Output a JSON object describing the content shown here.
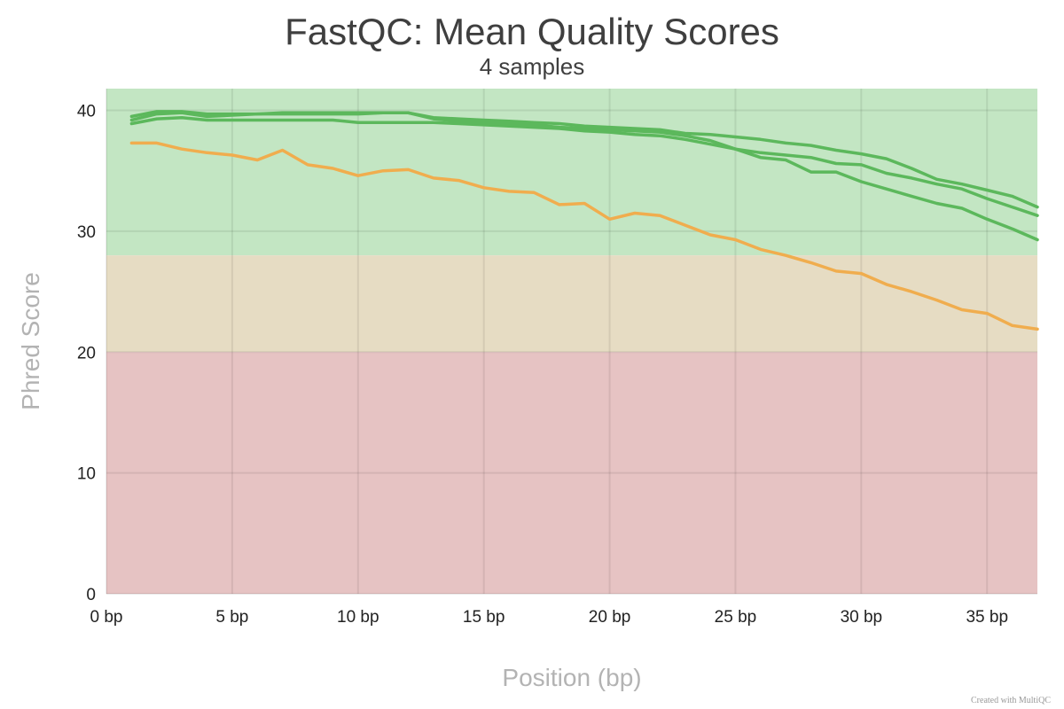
{
  "chart_data": {
    "type": "line",
    "title": "FastQC: Mean Quality Scores",
    "subtitle": "4 samples",
    "xlabel": "Position (bp)",
    "ylabel": "Phred Score",
    "xlim": [
      0,
      37
    ],
    "ylim": [
      0,
      41.8
    ],
    "x_ticks": [
      0,
      5,
      10,
      15,
      20,
      25,
      30,
      35
    ],
    "x_tick_labels": [
      "0 bp",
      "5 bp",
      "10 bp",
      "15 bp",
      "20 bp",
      "25 bp",
      "30 bp",
      "35 bp"
    ],
    "y_ticks": [
      0,
      10,
      20,
      30,
      40
    ],
    "y_tick_labels": [
      "0",
      "10",
      "20",
      "30",
      "40"
    ],
    "grid": true,
    "bands": [
      {
        "from": 28,
        "to": 41.8,
        "color": "#c3e6c3"
      },
      {
        "from": 20,
        "to": 28,
        "color": "#e6dcc3"
      },
      {
        "from": 0,
        "to": 20,
        "color": "#e6c3c3"
      }
    ],
    "x": [
      1,
      2,
      3,
      4,
      5,
      6,
      7,
      8,
      9,
      10,
      11,
      12,
      13,
      14,
      15,
      16,
      17,
      18,
      19,
      20,
      21,
      22,
      23,
      24,
      25,
      26,
      27,
      28,
      29,
      30,
      31,
      32,
      33,
      34,
      35,
      36,
      37
    ],
    "series": [
      {
        "color": "#5cb85c",
        "values": [
          39.5,
          39.9,
          39.9,
          39.7,
          39.7,
          39.7,
          39.8,
          39.8,
          39.8,
          39.8,
          39.8,
          39.8,
          39.4,
          39.3,
          39.2,
          39.1,
          39.0,
          38.9,
          38.7,
          38.6,
          38.5,
          38.4,
          38.1,
          38.0,
          37.8,
          37.6,
          37.3,
          37.1,
          36.7,
          36.4,
          36.0,
          35.2,
          34.3,
          33.9,
          33.4,
          32.9,
          32.0
        ]
      },
      {
        "color": "#5cb85c",
        "values": [
          39.2,
          39.7,
          39.8,
          39.5,
          39.6,
          39.7,
          39.7,
          39.7,
          39.7,
          39.7,
          39.8,
          39.8,
          39.3,
          39.1,
          39.0,
          38.9,
          38.8,
          38.6,
          38.5,
          38.4,
          38.3,
          38.2,
          37.9,
          37.5,
          36.8,
          36.1,
          35.9,
          34.9,
          34.9,
          34.1,
          33.5,
          32.9,
          32.3,
          31.9,
          31.0,
          30.2,
          29.3
        ]
      },
      {
        "color": "#5cb85c",
        "values": [
          38.9,
          39.3,
          39.4,
          39.2,
          39.2,
          39.2,
          39.2,
          39.2,
          39.2,
          39.0,
          39.0,
          39.0,
          39.0,
          38.9,
          38.8,
          38.7,
          38.6,
          38.5,
          38.3,
          38.2,
          38.0,
          37.9,
          37.6,
          37.2,
          36.8,
          36.5,
          36.3,
          36.1,
          35.6,
          35.5,
          34.8,
          34.4,
          33.9,
          33.5,
          32.7,
          32.0,
          31.3
        ]
      },
      {
        "color": "#f0ad4e",
        "values": [
          37.3,
          37.3,
          36.8,
          36.5,
          36.3,
          35.9,
          36.7,
          35.5,
          35.2,
          34.6,
          35.0,
          35.1,
          34.4,
          34.2,
          33.6,
          33.3,
          33.2,
          32.2,
          32.3,
          31.0,
          31.5,
          31.3,
          30.5,
          29.7,
          29.3,
          28.5,
          28.0,
          27.4,
          26.7,
          26.5,
          25.6,
          25.0,
          24.3,
          23.5,
          23.2,
          22.2,
          21.9
        ]
      }
    ]
  },
  "footer": {
    "credit": "Created with MultiQC"
  }
}
